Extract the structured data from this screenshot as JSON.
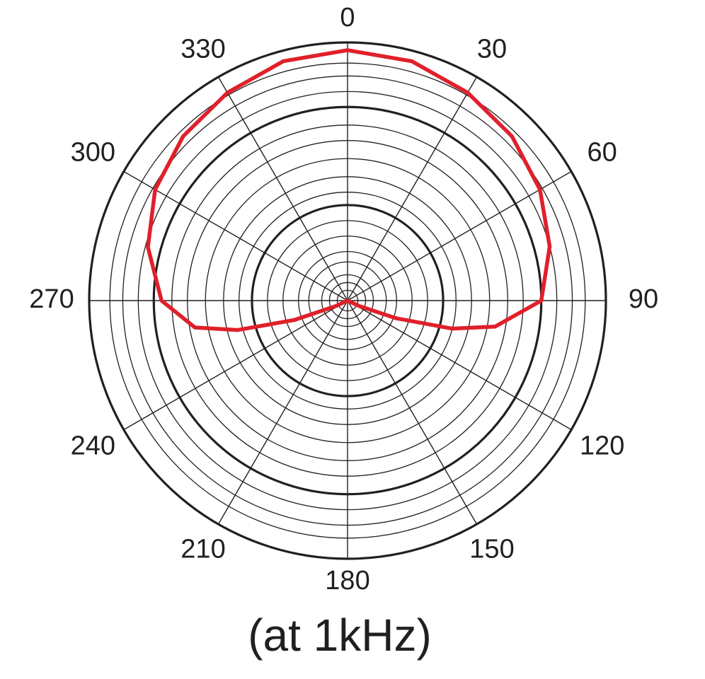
{
  "chart_data": {
    "type": "polar",
    "title": "(at 1kHz)",
    "theta_direction": "clockwise",
    "theta_zero": "top",
    "thetaticks": [
      0,
      30,
      60,
      90,
      120,
      150,
      180,
      210,
      240,
      270,
      300,
      330
    ],
    "rlim": [
      0,
      1
    ],
    "rticks": [
      0.04,
      0.07,
      0.1,
      0.15,
      0.19,
      0.25,
      0.31,
      0.42,
      0.48,
      0.55,
      0.62,
      0.68,
      0.81,
      0.87,
      0.92
    ],
    "rticks_major": [
      0.37,
      0.75,
      1
    ],
    "series": [
      {
        "color": "#e0202a",
        "theta": [
          0,
          15,
          30,
          45,
          60,
          75,
          90,
          100,
          105,
          110,
          115,
          120,
          180,
          240,
          245,
          250,
          255,
          260,
          270,
          285,
          300,
          315,
          330,
          345
        ],
        "values": [
          0.97,
          0.96,
          0.93,
          0.9,
          0.86,
          0.81,
          0.75,
          0.58,
          0.42,
          0.2,
          0.05,
          0,
          0,
          0,
          0.05,
          0.22,
          0.44,
          0.6,
          0.72,
          0.8,
          0.86,
          0.9,
          0.93,
          0.96
        ]
      }
    ]
  }
}
